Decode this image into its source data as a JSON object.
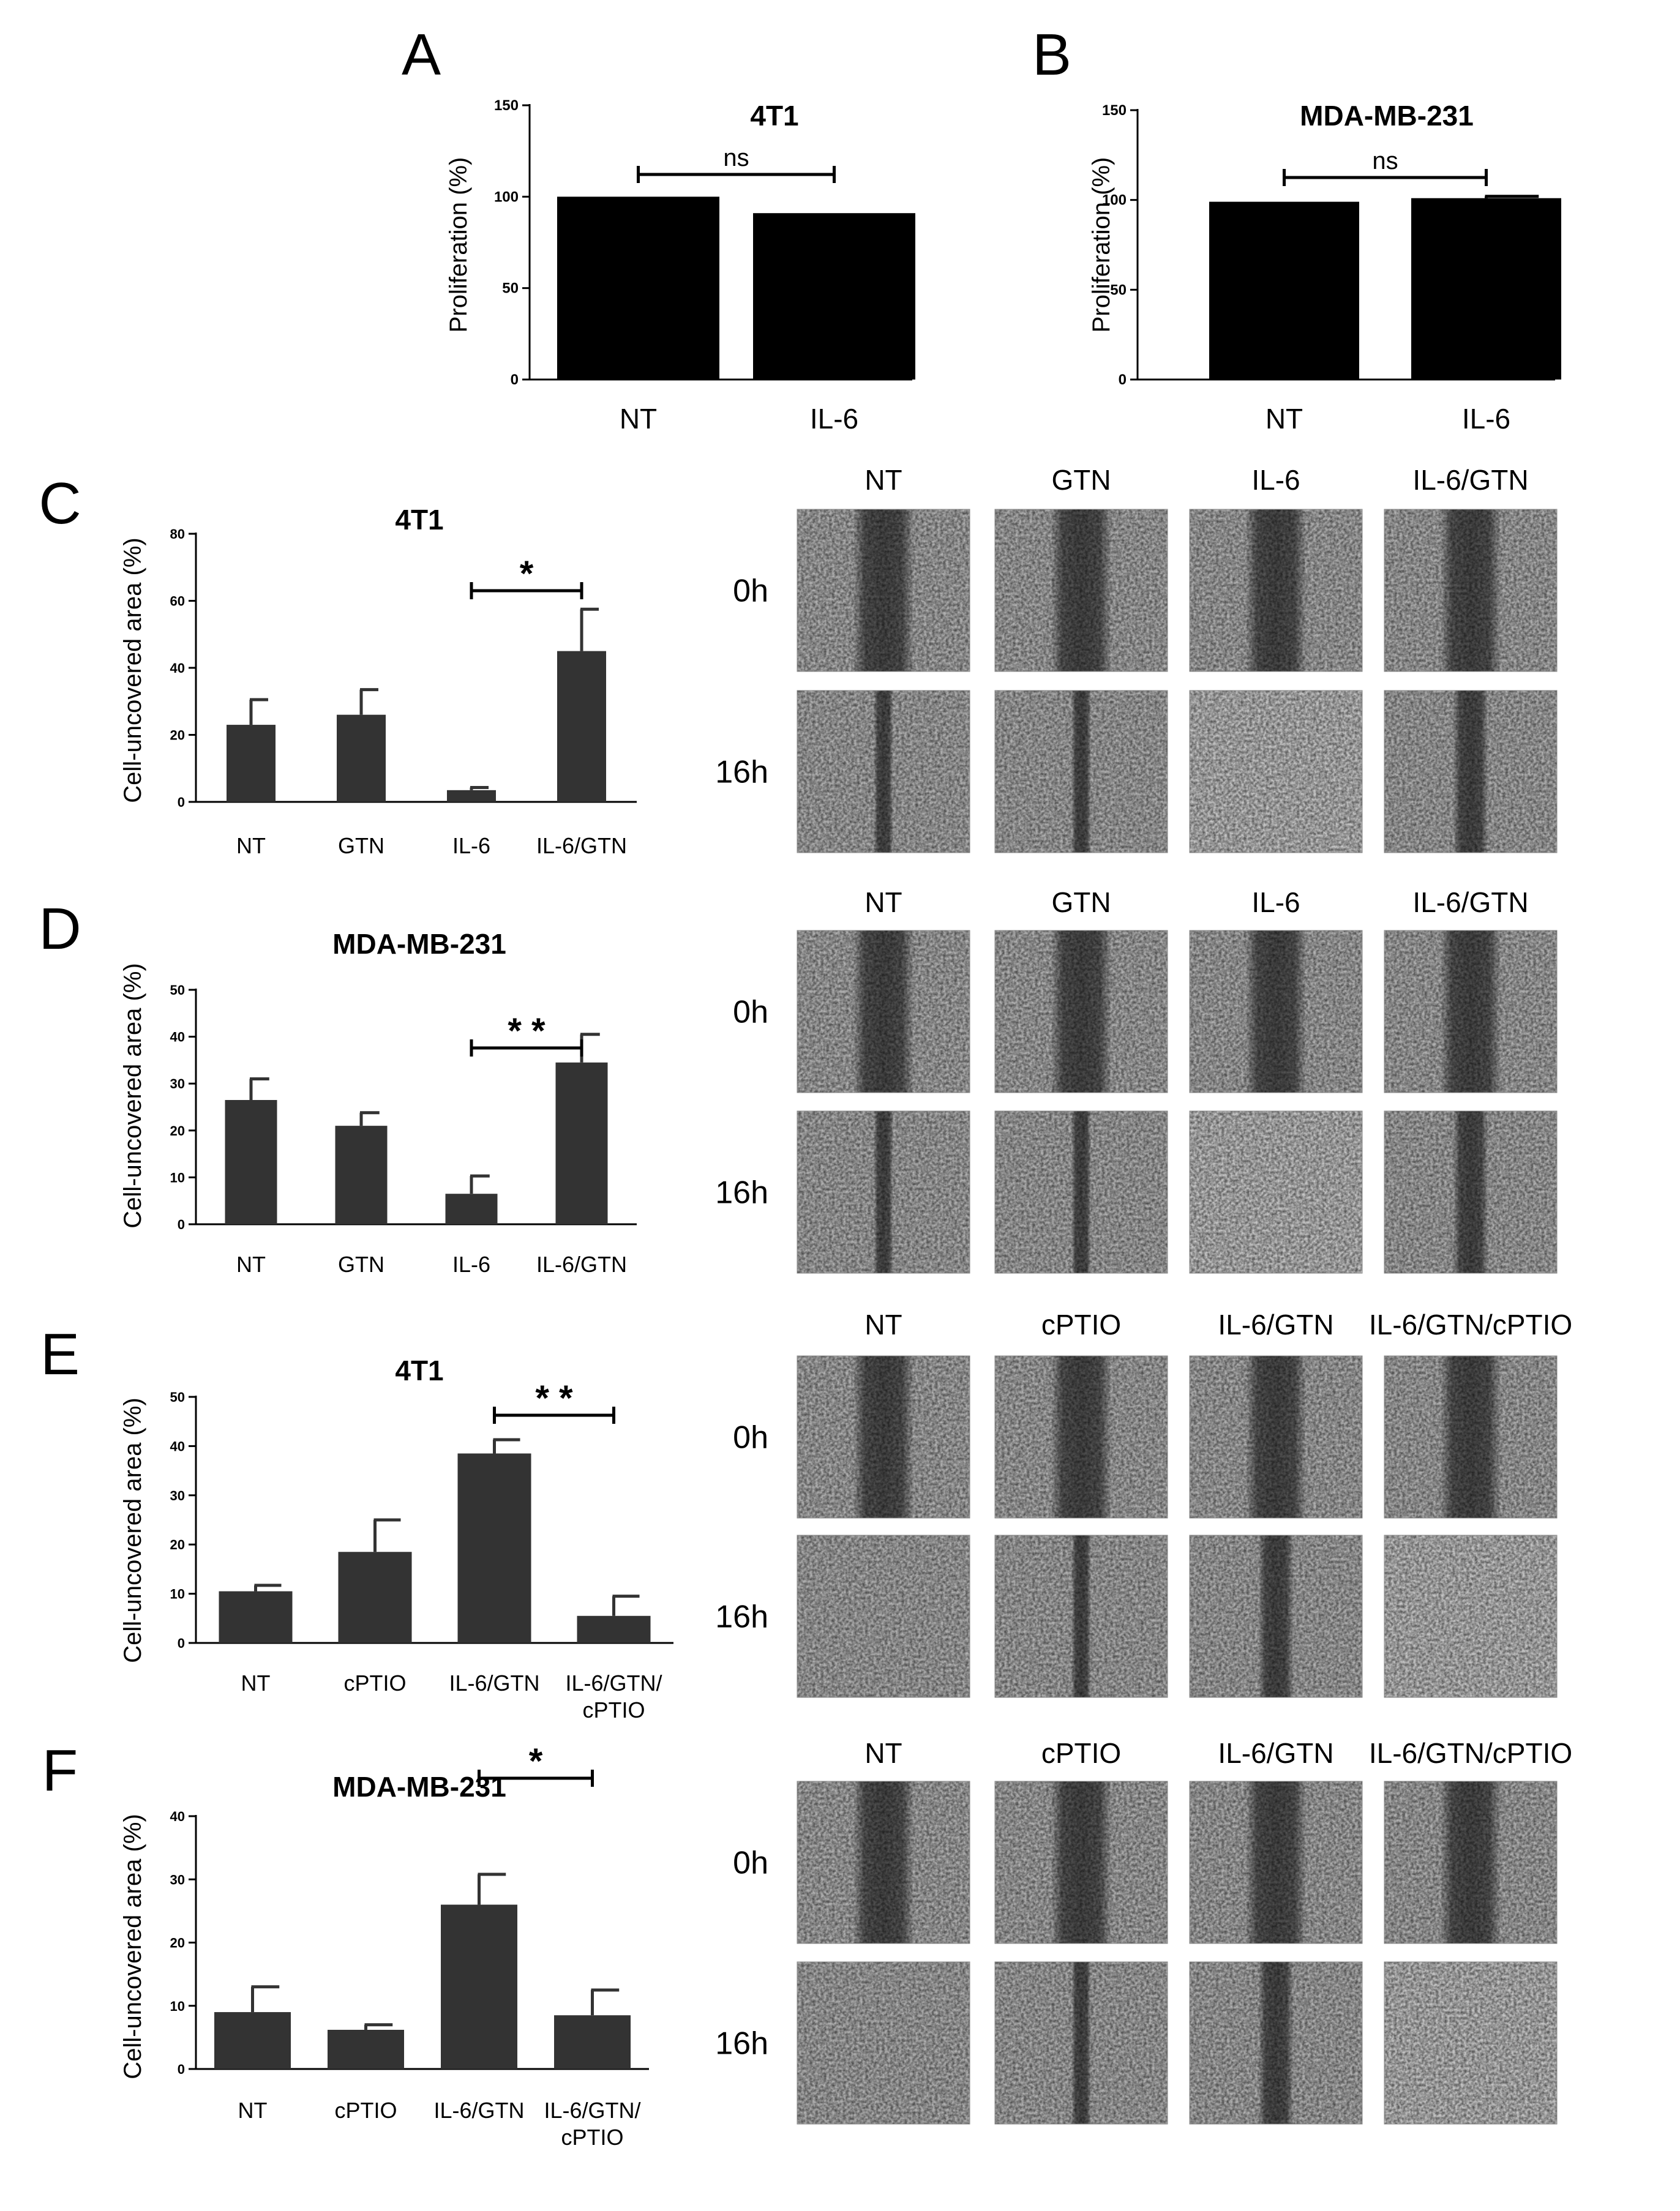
{
  "panels": {
    "A": {
      "letter": "A",
      "title": "4T1",
      "ylabel": "Proliferation (%)",
      "significance": "ns"
    },
    "B": {
      "letter": "B",
      "title": "MDA-MB-231",
      "ylabel": "Proliferation (%)",
      "significance": "ns"
    },
    "C": {
      "letter": "C",
      "title": "4T1",
      "ylabel": "Cell-uncovered area (%)",
      "significance": "*"
    },
    "D": {
      "letter": "D",
      "title": "MDA-MB-231",
      "ylabel": "Cell-uncovered area (%)",
      "significance": "* *"
    },
    "E": {
      "letter": "E",
      "title": "4T1",
      "ylabel": "Cell-uncovered area (%)",
      "significance": "* *"
    },
    "F": {
      "letter": "F",
      "title": "MDA-MB-231",
      "ylabel": "Cell-uncovered area (%)",
      "significance": "*"
    }
  },
  "micrograph_grids": {
    "C": {
      "columns": [
        "NT",
        "GTN",
        "IL-6",
        "IL-6/GTN"
      ],
      "rows": [
        "0h",
        "16h"
      ]
    },
    "D": {
      "columns": [
        "NT",
        "GTN",
        "IL-6",
        "IL-6/GTN"
      ],
      "rows": [
        "0h",
        "16h"
      ]
    },
    "E": {
      "columns": [
        "NT",
        "cPTIO",
        "IL-6/GTN",
        "IL-6/GTN/cPTIO"
      ],
      "rows": [
        "0h",
        "16h"
      ]
    },
    "F": {
      "columns": [
        "NT",
        "cPTIO",
        "IL-6/GTN",
        "IL-6/GTN/cPTIO"
      ],
      "rows": [
        "0h",
        "16h"
      ]
    }
  },
  "colors": {
    "bar_black": "#000000",
    "bar_dark": "#333333",
    "axis": "#000000",
    "micro_dark": "#585858",
    "micro_light": "#c4c4c4"
  },
  "chart_data": [
    {
      "panel": "A",
      "type": "bar",
      "title": "4T1",
      "ylabel": "Proliferation (%)",
      "categories": [
        "NT",
        "IL-6"
      ],
      "values": [
        100,
        91
      ],
      "errors": [
        0,
        0
      ],
      "ylim": [
        0,
        150
      ],
      "yticks": [
        0,
        50,
        100,
        150
      ],
      "significance": {
        "label": "ns",
        "from": "NT",
        "to": "IL-6"
      }
    },
    {
      "panel": "B",
      "type": "bar",
      "title": "MDA-MB-231",
      "ylabel": "Proliferation (%)",
      "categories": [
        "NT",
        "IL-6"
      ],
      "values": [
        99,
        101
      ],
      "errors": [
        0,
        1
      ],
      "ylim": [
        0,
        150
      ],
      "yticks": [
        0,
        50,
        100,
        150
      ],
      "significance": {
        "label": "ns",
        "from": "NT",
        "to": "IL-6"
      }
    },
    {
      "panel": "C",
      "type": "bar",
      "title": "4T1",
      "ylabel": "Cell-uncovered area (%)",
      "categories": [
        "NT",
        "GTN",
        "IL-6",
        "IL-6/GTN"
      ],
      "values": [
        23,
        26,
        3.5,
        45
      ],
      "errors": [
        7.5,
        7.5,
        0.8,
        12.5
      ],
      "ylim": [
        0,
        80
      ],
      "yticks": [
        0,
        20,
        40,
        60,
        80
      ],
      "significance": {
        "label": "*",
        "from": "IL-6",
        "to": "IL-6/GTN"
      }
    },
    {
      "panel": "D",
      "type": "bar",
      "title": "MDA-MB-231",
      "ylabel": "Cell-uncovered area (%)",
      "categories": [
        "NT",
        "GTN",
        "IL-6",
        "IL-6/GTN"
      ],
      "values": [
        26.5,
        21,
        6.5,
        34.5
      ],
      "errors": [
        4.5,
        2.8,
        3.8,
        6
      ],
      "ylim": [
        0,
        50
      ],
      "yticks": [
        0,
        10,
        20,
        30,
        40,
        50
      ],
      "significance": {
        "label": "* *",
        "from": "IL-6",
        "to": "IL-6/GTN"
      }
    },
    {
      "panel": "E",
      "type": "bar",
      "title": "4T1",
      "ylabel": "Cell-uncovered area (%)",
      "categories": [
        "NT",
        "cPTIO",
        "IL-6/GTN",
        "IL-6/GTN/\ncPTIO"
      ],
      "values": [
        10.5,
        18.5,
        38.5,
        5.5
      ],
      "errors": [
        1.2,
        6.5,
        2.8,
        4
      ],
      "ylim": [
        0,
        50
      ],
      "yticks": [
        0,
        10,
        20,
        30,
        40,
        50
      ],
      "significance": {
        "label": "* *",
        "from": "IL-6/GTN",
        "to": "IL-6/GTN/\ncPTIO"
      }
    },
    {
      "panel": "F",
      "type": "bar",
      "title": "MDA-MB-231",
      "ylabel": "Cell-uncovered area (%)",
      "categories": [
        "NT",
        "cPTIO",
        "IL-6/GTN",
        "IL-6/GTN/\ncPTIO"
      ],
      "values": [
        9,
        6.2,
        26,
        8.5
      ],
      "errors": [
        4,
        0.8,
        4.8,
        4
      ],
      "ylim": [
        0,
        40
      ],
      "yticks": [
        0,
        10,
        20,
        30,
        40
      ],
      "significance": {
        "label": "*",
        "from": "IL-6/GTN",
        "to": "IL-6/GTN/\ncPTIO"
      }
    }
  ]
}
